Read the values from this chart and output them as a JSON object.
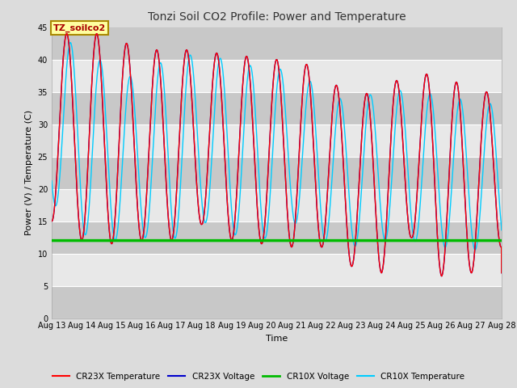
{
  "title": "Tonzi Soil CO2 Profile: Power and Temperature",
  "xlabel": "Time",
  "ylabel": "Power (V) / Temperature (C)",
  "ylim": [
    0,
    45
  ],
  "xlim": [
    0,
    15
  ],
  "yticks": [
    0,
    5,
    10,
    15,
    20,
    25,
    30,
    35,
    40,
    45
  ],
  "xtick_labels": [
    "Aug 13",
    "Aug 14",
    "Aug 15",
    "Aug 16",
    "Aug 17",
    "Aug 18",
    "Aug 19",
    "Aug 20",
    "Aug 21",
    "Aug 22",
    "Aug 23",
    "Aug 24",
    "Aug 25",
    "Aug 26",
    "Aug 27",
    "Aug 28"
  ],
  "annotation_text": "TZ_soilco2",
  "cr23x_temp_color": "#FF0000",
  "cr23x_volt_color": "#0000CC",
  "cr10x_volt_color": "#00BB00",
  "cr10x_temp_color": "#00CCFF",
  "fig_bg_color": "#DCDCDC",
  "plot_bg_color": "#D8D8D8",
  "band_light": "#E8E8E8",
  "band_dark": "#C8C8C8",
  "legend_labels": [
    "CR23X Temperature",
    "CR23X Voltage",
    "CR10X Voltage",
    "CR10X Temperature"
  ],
  "cr10x_volt_level": 12.0,
  "title_fontsize": 10,
  "label_fontsize": 8,
  "tick_fontsize": 7
}
